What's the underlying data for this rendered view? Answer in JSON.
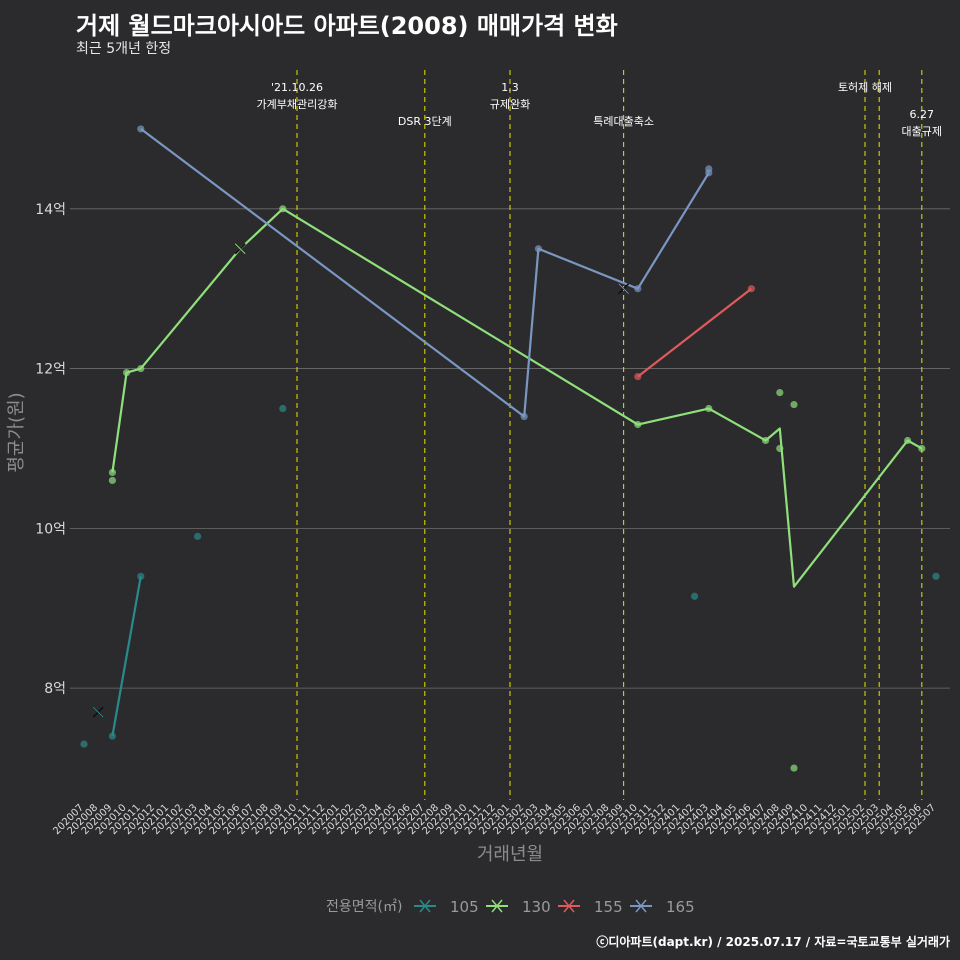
{
  "header": {
    "title": "거제 월드마크아시아드 아파트(2008) 매매가격 변화",
    "subtitle": "최근 5개년 한정"
  },
  "footer": {
    "caption": "ⓒ디아파트(dapt.kr) / 2025.07.17 / 자료=국토교통부 실거래가"
  },
  "chart_data": {
    "type": "line",
    "title": "거제 월드마크아시아드 아파트(2008) 매매가격 변화",
    "subtitle": "최근 5개년 한정",
    "xlabel": "거래년월",
    "ylabel": "평균가(원)",
    "ylim": [
      6.6,
      15.8
    ],
    "yticks": [
      8,
      10,
      12,
      14
    ],
    "ytick_labels": [
      "8억",
      "10억",
      "12억",
      "14억"
    ],
    "grid": "horizontal",
    "x": [
      "202007",
      "202008",
      "202009",
      "202010",
      "202011",
      "202012",
      "202101",
      "202102",
      "202103",
      "202104",
      "202105",
      "202106",
      "202107",
      "202108",
      "202109",
      "202110",
      "202111",
      "202112",
      "202201",
      "202202",
      "202203",
      "202204",
      "202205",
      "202206",
      "202207",
      "202208",
      "202209",
      "202210",
      "202211",
      "202212",
      "202301",
      "202302",
      "202303",
      "202304",
      "202305",
      "202306",
      "202307",
      "202308",
      "202309",
      "202310",
      "202311",
      "202312",
      "202401",
      "202402",
      "202403",
      "202404",
      "202405",
      "202406",
      "202407",
      "202408",
      "202409",
      "202410",
      "202411",
      "202412",
      "202501",
      "202502",
      "202503",
      "202504",
      "202505",
      "202506",
      "202507"
    ],
    "legend": {
      "title": "전용면적(㎡)",
      "position": "bottom"
    },
    "series": [
      {
        "name": "105",
        "color": "#2a8a8a",
        "line": [
          [
            "202009",
            7.4
          ],
          [
            "202011",
            9.4
          ]
        ],
        "points": [
          [
            "202007",
            7.3
          ],
          [
            "202009",
            7.4
          ],
          [
            "202011",
            9.4
          ],
          [
            "202103",
            9.9
          ],
          [
            "202109",
            11.5
          ],
          [
            "202402",
            9.15
          ],
          [
            "202507",
            9.4
          ]
        ],
        "crosses": [
          [
            "202008",
            7.7
          ]
        ]
      },
      {
        "name": "130",
        "color": "#8fe07a",
        "line": [
          [
            "202009",
            10.7
          ],
          [
            "202010",
            11.95
          ],
          [
            "202011",
            12.0
          ],
          [
            "202106",
            13.5
          ],
          [
            "202109",
            14.0
          ],
          [
            "202310",
            11.3
          ],
          [
            "202403",
            11.5
          ],
          [
            "202407",
            11.1
          ],
          [
            "202408",
            11.25
          ],
          [
            "202409",
            9.27
          ],
          [
            "202505",
            11.1
          ],
          [
            "202506",
            11.0
          ]
        ],
        "points": [
          [
            "202009",
            10.7
          ],
          [
            "202009",
            10.6
          ],
          [
            "202010",
            11.95
          ],
          [
            "202011",
            12.0
          ],
          [
            "202109",
            14.0
          ],
          [
            "202310",
            11.3
          ],
          [
            "202403",
            11.5
          ],
          [
            "202407",
            11.1
          ],
          [
            "202408",
            11.7
          ],
          [
            "202408",
            11.0
          ],
          [
            "202409",
            11.55
          ],
          [
            "202409",
            7.0
          ],
          [
            "202505",
            11.1
          ],
          [
            "202506",
            11.0
          ]
        ],
        "crosses": [
          [
            "202106",
            13.5
          ]
        ]
      },
      {
        "name": "155",
        "color": "#e05a5a",
        "line": [
          [
            "202310",
            11.9
          ],
          [
            "202406",
            13.0
          ]
        ],
        "points": [
          [
            "202310",
            11.9
          ],
          [
            "202406",
            13.0
          ]
        ],
        "crosses": []
      },
      {
        "name": "165",
        "color": "#7a97c2",
        "line": [
          [
            "202011",
            15.0
          ],
          [
            "202302",
            11.4
          ],
          [
            "202303",
            13.5
          ],
          [
            "202310",
            13.0
          ],
          [
            "202403",
            14.45
          ]
        ],
        "points": [
          [
            "202011",
            15.0
          ],
          [
            "202302",
            11.4
          ],
          [
            "202303",
            13.5
          ],
          [
            "202310",
            13.0
          ],
          [
            "202403",
            14.5
          ],
          [
            "202403",
            14.45
          ]
        ],
        "crosses": [
          [
            "202309",
            13.0
          ]
        ]
      }
    ],
    "events": [
      {
        "x": "202110",
        "label": "'21.10.26\n가계부채관리강화",
        "row": 0
      },
      {
        "x": "202207",
        "label": "DSR 3단계",
        "row": 1
      },
      {
        "x": "202301",
        "label": "1.3\n규제완화",
        "row": 0
      },
      {
        "x": "202309",
        "label": "특례대출축소",
        "row": 1
      },
      {
        "x": "202502",
        "label": "토허제 해제",
        "row": 0
      },
      {
        "x": "202503",
        "label": "",
        "row": 0
      },
      {
        "x": "202506",
        "label": "6.27\n대출규제",
        "row": 2
      }
    ]
  }
}
